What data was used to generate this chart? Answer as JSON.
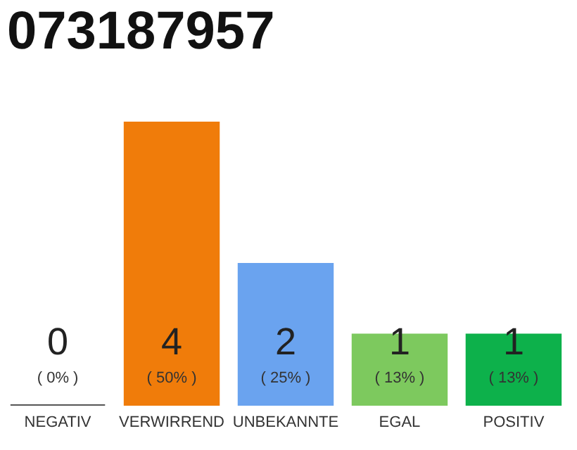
{
  "chart_data": {
    "type": "bar",
    "title": "073187957",
    "categories": [
      "NEGATIV",
      "VERWIRREND",
      "UNBEKANNTE",
      "EGAL",
      "POSITIV"
    ],
    "values": [
      0,
      4,
      2,
      1,
      1
    ],
    "colors": [
      "#555555",
      "#f07c0a",
      "#6aa3ef",
      "#7dc95e",
      "#0db14b"
    ],
    "ylim": [
      0,
      4
    ],
    "tick_labels": "x",
    "data_labels": true,
    "annotations": [
      "( 0% )",
      "( 50% )",
      "( 25% )",
      "( 13% )",
      "( 13% )"
    ]
  }
}
